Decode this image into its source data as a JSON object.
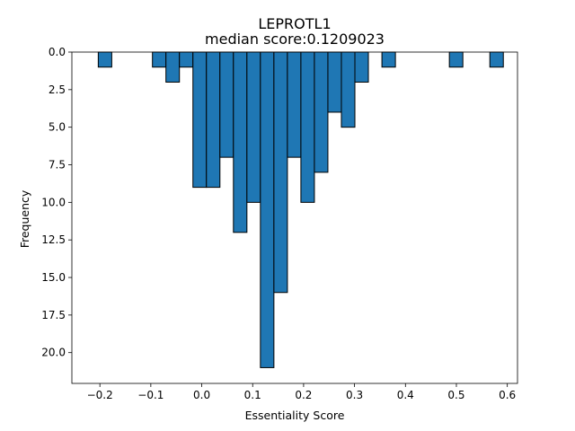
{
  "chart_data": {
    "type": "bar",
    "title": "LEPROTL1",
    "subtitle": "median score:0.1209023",
    "xlabel": "Essentiality Score",
    "ylabel": "Frequency",
    "xlim": [
      -0.255,
      0.62
    ],
    "ylim": [
      22.05,
      0
    ],
    "y_inverted": true,
    "bin_width": 0.0265,
    "bar_color": "#1f77b4",
    "edge_color": "#000000",
    "x_ticks": [
      -0.2,
      -0.1,
      0.0,
      0.1,
      0.2,
      0.3,
      0.4,
      0.5,
      0.6
    ],
    "x_tick_labels": [
      "−0.2",
      "−0.1",
      "0.0",
      "0.1",
      "0.2",
      "0.3",
      "0.4",
      "0.5",
      "0.6"
    ],
    "y_ticks": [
      0.0,
      2.5,
      5.0,
      7.5,
      10.0,
      12.5,
      15.0,
      17.5,
      20.0
    ],
    "y_tick_labels": [
      "0.0",
      "2.5",
      "5.0",
      "7.5",
      "10.0",
      "12.5",
      "15.0",
      "17.5",
      "20.0"
    ],
    "bins": [
      {
        "x": -0.2032,
        "count": 1
      },
      {
        "x": -0.0968,
        "count": 1
      },
      {
        "x": -0.0703,
        "count": 2
      },
      {
        "x": -0.0438,
        "count": 1
      },
      {
        "x": -0.0173,
        "count": 9
      },
      {
        "x": 0.0092,
        "count": 9
      },
      {
        "x": 0.0357,
        "count": 7
      },
      {
        "x": 0.0622,
        "count": 12
      },
      {
        "x": 0.0887,
        "count": 10
      },
      {
        "x": 0.1152,
        "count": 21
      },
      {
        "x": 0.1417,
        "count": 16
      },
      {
        "x": 0.1682,
        "count": 7
      },
      {
        "x": 0.1947,
        "count": 10
      },
      {
        "x": 0.2212,
        "count": 8
      },
      {
        "x": 0.2477,
        "count": 4
      },
      {
        "x": 0.2742,
        "count": 5
      },
      {
        "x": 0.3007,
        "count": 2
      },
      {
        "x": 0.3538,
        "count": 1
      },
      {
        "x": 0.4862,
        "count": 1
      },
      {
        "x": 0.5657,
        "count": 1
      }
    ]
  }
}
